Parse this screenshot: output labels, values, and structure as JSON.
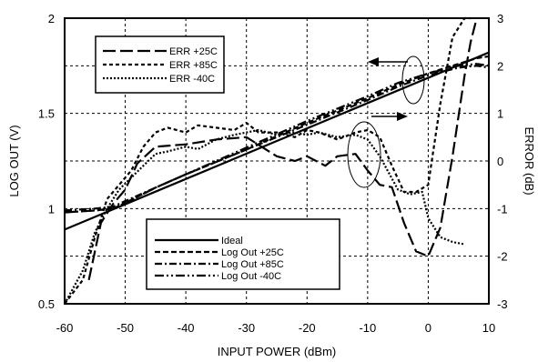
{
  "chart_data": {
    "type": "line",
    "title": "",
    "xlabel": "INPUT POWER (dBm)",
    "ylabel": "LOG OUT (V)",
    "y2label": "ERROR (dB)",
    "xlim": [
      -60,
      10
    ],
    "ylim": [
      0.5,
      2
    ],
    "y2lim": [
      -3,
      3
    ],
    "x_ticks": [
      -60,
      -50,
      -40,
      -30,
      -20,
      -10,
      0,
      10
    ],
    "y_ticks": [
      0.5,
      1,
      1.5,
      2
    ],
    "y_tick_labels": [
      "0.5",
      "1",
      "1.5",
      "2"
    ],
    "y2_ticks": [
      -3,
      -2,
      -1,
      0,
      1,
      2,
      3
    ],
    "grid": "dashed",
    "logout_series": [
      {
        "name": "Ideal",
        "style": "solid",
        "x": [
          -60,
          10
        ],
        "y": [
          0.89,
          1.82
        ]
      },
      {
        "name": "Log Out +25C",
        "style": "dashed",
        "x": [
          -60,
          -55,
          -52,
          -50,
          -45,
          -40,
          -30,
          -20,
          -10,
          -5,
          0,
          5,
          8,
          10
        ],
        "y": [
          0.98,
          0.99,
          1.0,
          1.03,
          1.11,
          1.18,
          1.31,
          1.45,
          1.58,
          1.65,
          1.71,
          1.76,
          1.79,
          1.8
        ]
      },
      {
        "name": "Log Out +85C",
        "style": "dash-dot",
        "x": [
          -60,
          -55,
          -52,
          -50,
          -45,
          -40,
          -30,
          -20,
          -10,
          -5,
          0,
          5,
          8,
          10
        ],
        "y": [
          0.99,
          1.0,
          1.01,
          1.04,
          1.11,
          1.18,
          1.31,
          1.44,
          1.57,
          1.64,
          1.7,
          1.74,
          1.75,
          1.74
        ]
      },
      {
        "name": "Log Out  -40C",
        "style": "dash-dot-dot",
        "x": [
          -60,
          -55,
          -52,
          -50,
          -45,
          -40,
          -30,
          -20,
          -10,
          -5,
          0,
          5,
          8,
          10
        ],
        "y": [
          0.98,
          0.99,
          1.0,
          1.03,
          1.11,
          1.18,
          1.32,
          1.46,
          1.59,
          1.66,
          1.71,
          1.75,
          1.76,
          1.75
        ]
      }
    ],
    "error_series": [
      {
        "name": "ERR +25C",
        "style": "long-dash",
        "x": [
          -56,
          -54,
          -52,
          -50,
          -48,
          -45,
          -40,
          -35,
          -30,
          -25,
          -22,
          -20,
          -17,
          -15,
          -12,
          -10,
          -8,
          -6,
          -4,
          -2,
          0,
          2,
          4,
          6,
          7,
          8
        ],
        "y": [
          -2.5,
          -1.3,
          -0.9,
          -0.6,
          -0.05,
          0.3,
          0.35,
          0.45,
          0.5,
          0.1,
          0.0,
          0.1,
          -0.1,
          0.1,
          0.15,
          -0.2,
          -0.5,
          -0.55,
          -1.3,
          -1.9,
          -2.0,
          -1.4,
          0.1,
          1.8,
          2.5,
          3.2
        ]
      },
      {
        "name": "ERR +85C",
        "style": "short-dash",
        "x": [
          -60,
          -57,
          -55,
          -53,
          -51,
          -49,
          -47,
          -45,
          -43,
          -40,
          -38,
          -35,
          -32,
          -30,
          -28,
          -25,
          -22,
          -20,
          -18,
          -15,
          -12,
          -10,
          -8,
          -6,
          -4,
          -2,
          0,
          2,
          4,
          6,
          7
        ],
        "y": [
          -3.0,
          -2.5,
          -1.6,
          -0.8,
          -0.5,
          -0.2,
          0.3,
          0.6,
          0.7,
          0.6,
          0.75,
          0.7,
          0.65,
          0.8,
          0.6,
          0.6,
          0.5,
          0.65,
          0.6,
          0.45,
          0.6,
          0.65,
          0.5,
          -0.1,
          -0.65,
          -0.65,
          -0.5,
          1.2,
          2.6,
          3.1,
          3.3
        ]
      },
      {
        "name": "ERR  -40C",
        "style": "dotted",
        "x": [
          -60,
          -57,
          -55,
          -53,
          -51,
          -49,
          -47,
          -45,
          -43,
          -40,
          -38,
          -35,
          -32,
          -30,
          -28,
          -25,
          -22,
          -20,
          -18,
          -15,
          -12,
          -10,
          -8,
          -5,
          -3,
          -1,
          0,
          2,
          4,
          6
        ],
        "y": [
          -3.0,
          -2.3,
          -1.5,
          -1.0,
          -0.6,
          -0.35,
          -0.1,
          0.15,
          0.2,
          0.3,
          0.25,
          0.45,
          0.55,
          0.6,
          0.65,
          0.55,
          0.6,
          0.55,
          0.6,
          0.5,
          0.55,
          0.45,
          0.1,
          -0.6,
          -0.7,
          -0.65,
          -1.2,
          -1.6,
          -1.7,
          -1.75
        ]
      }
    ],
    "legend_top": {
      "placement": "top-left",
      "entries": [
        "ERR +25C",
        "ERR +85C",
        "ERR  -40C"
      ]
    },
    "legend_bottom": {
      "placement": "bottom-center",
      "entries": [
        "Ideal",
        "Log Out +25C",
        "Log Out +85C",
        "Log Out  -40C"
      ]
    }
  }
}
